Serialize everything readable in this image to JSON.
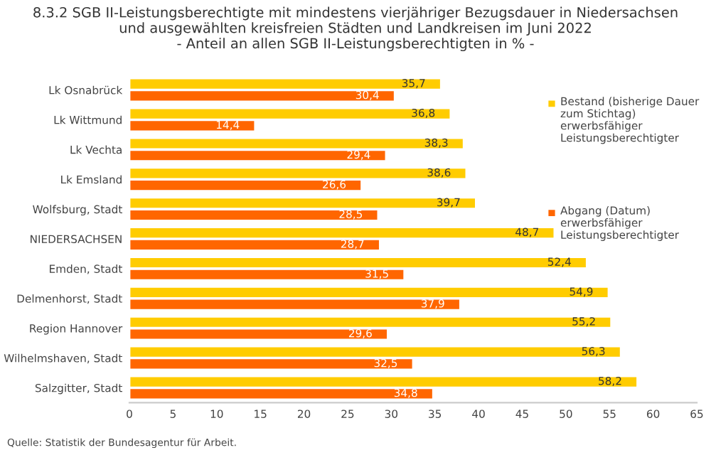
{
  "chart_data": {
    "type": "bar",
    "orientation": "horizontal",
    "title": "8.3.2 SGB II-Leistungsberechtigte mit mindestens vierjähriger Bezugsdauer in Niedersachsen\nund ausgewählten kreisfreien Städten und Landkreisen im Juni 2022\n- Anteil an allen SGB II-Leistungsberechtigten in % -",
    "categories": [
      "Lk Osnabrück",
      "Lk Wittmund",
      "Lk Vechta",
      "Lk Emsland",
      "Wolfsburg, Stadt",
      "NIEDERSACHSEN",
      "Emden, Stadt",
      "Delmenhorst, Stadt",
      "Region Hannover",
      "Wilhelmshaven, Stadt",
      "Salzgitter, Stadt"
    ],
    "series": [
      {
        "name": "Bestand (bisherige Dauer zum Stichtag) erwerbsfähiger Leistungsberechtigter",
        "color": "#ffcc00",
        "values": [
          35.7,
          36.8,
          38.3,
          38.6,
          39.7,
          48.7,
          52.4,
          54.9,
          55.2,
          56.3,
          58.2
        ],
        "value_labels": [
          "35,7",
          "36,8",
          "38,3",
          "38,6",
          "39,7",
          "48,7",
          "52,4",
          "54,9",
          "55,2",
          "56,3",
          "58,2"
        ]
      },
      {
        "name": "Abgang (Datum) erwerbsfähiger Leistungsberechtigter",
        "color": "#ff6600",
        "values": [
          30.4,
          14.4,
          29.4,
          26.6,
          28.5,
          28.7,
          31.5,
          37.9,
          29.6,
          32.5,
          34.8
        ],
        "value_labels": [
          "30,4",
          "14,4",
          "29,4",
          "26,6",
          "28,5",
          "28,7",
          "31,5",
          "37,9",
          "29,6",
          "32,5",
          "34,8"
        ]
      }
    ],
    "xlim": [
      0,
      65
    ],
    "xticks": [
      0,
      5,
      10,
      15,
      20,
      25,
      30,
      35,
      40,
      45,
      50,
      55,
      60,
      65
    ],
    "grid": false,
    "legend": "top right",
    "annotations": [
      "Quelle: Statistik der Bundesagentur für Arbeit."
    ]
  }
}
